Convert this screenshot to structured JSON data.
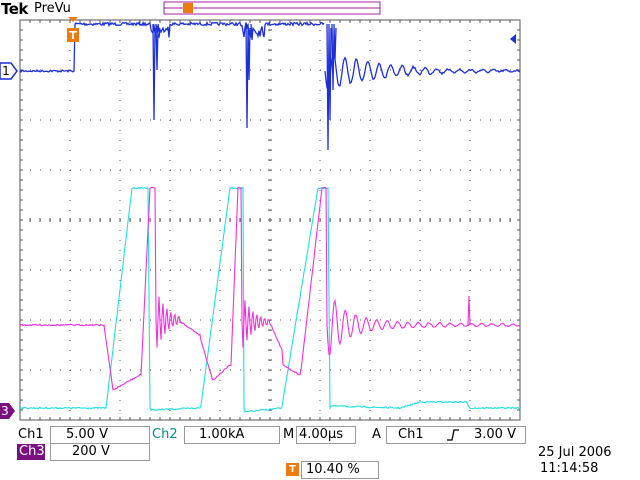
{
  "brand": "Tek",
  "mode": "PreVu",
  "markers": {
    "ch1": "1",
    "ch3": "3",
    "trigger": "T"
  },
  "readout": {
    "ch1_label": "Ch1",
    "ch1_scale": "5.00 V",
    "ch2_label": "Ch2",
    "ch2_scale": "1.00kA",
    "ch3_label": "Ch3",
    "ch3_scale": "200 V",
    "timebase_label": "M",
    "timebase_value": "4.00µs",
    "trigger_mode": "A",
    "trigger_source": "Ch1",
    "trigger_slope_icon": "rising-edge-icon",
    "trigger_level": "3.00 V",
    "trigger_position": "10.40 %",
    "date": "25 Jul  2006",
    "time": "11:14:58"
  },
  "colors": {
    "ch1": "#1c2fd8",
    "ch2": "#20e0e0",
    "ch3": "#f030e0",
    "trigger": "#f07a10",
    "record_bar": "#a020a0",
    "grid": "#555555"
  }
}
